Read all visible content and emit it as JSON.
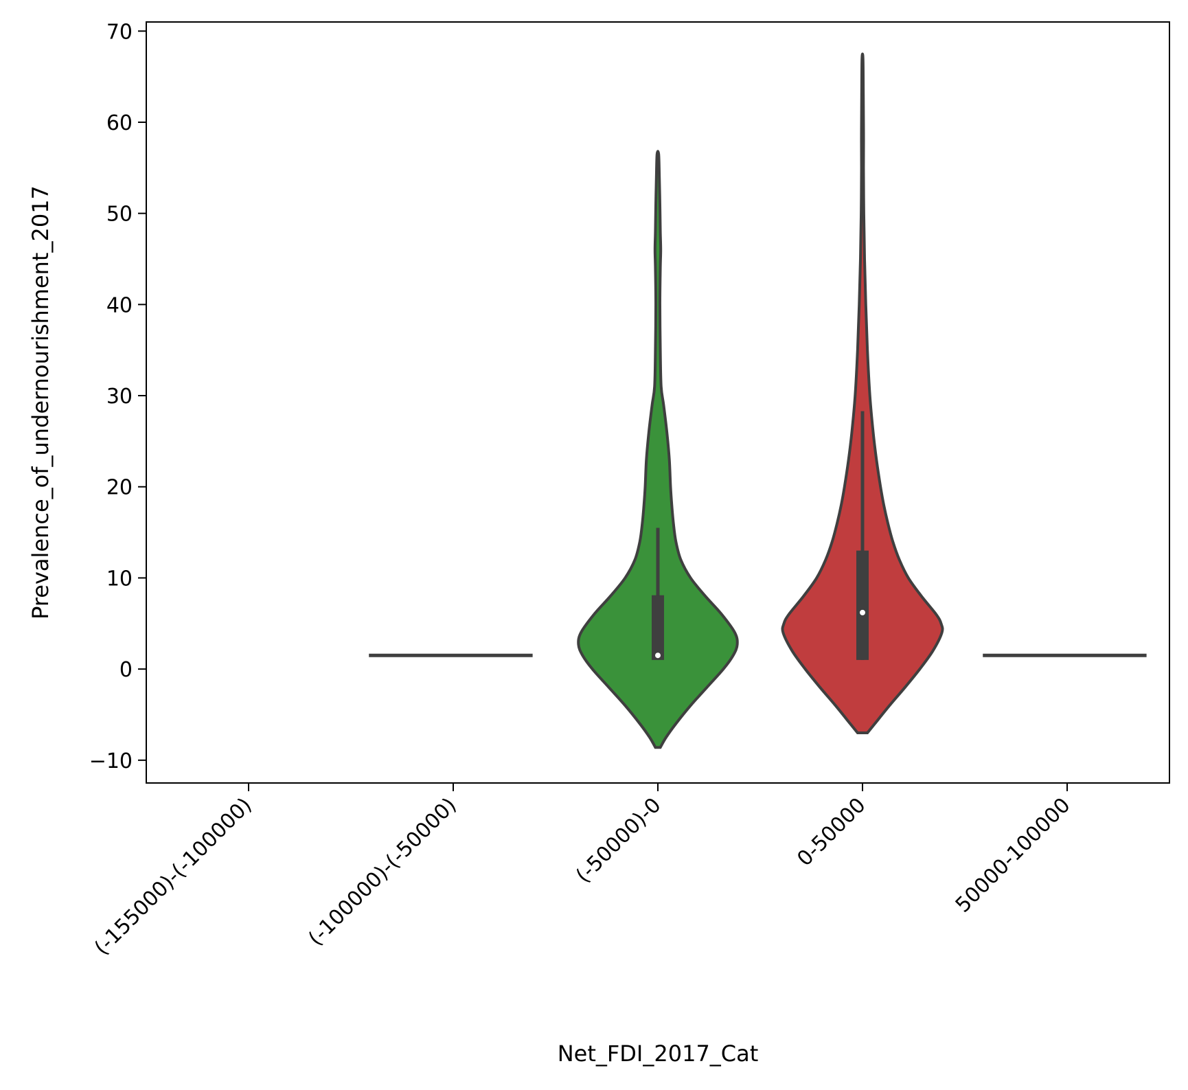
{
  "chart_data": {
    "type": "violin",
    "xlabel": "Net_FDI_2017_Cat",
    "ylabel": "Prevalence_of_undernourishment_2017",
    "ylim": [
      -12.5,
      71
    ],
    "yticks": [
      -10,
      0,
      10,
      20,
      30,
      40,
      50,
      60,
      70
    ],
    "ytick_labels": [
      "−10",
      "0",
      "10",
      "20",
      "30",
      "40",
      "50",
      "60",
      "70"
    ],
    "categories": [
      "(-155000)-(-100000)",
      "(-100000)-(-50000)",
      "(-50000)-0",
      "0-50000",
      "50000-100000"
    ],
    "grid": false,
    "legend": "none",
    "colors": {
      "(-50000)-0": "#3a923a",
      "0-50000": "#c03d3e",
      "outline": "#3f3f3f",
      "axes": "#000000"
    },
    "groups": [
      {
        "category": "(-155000)-(-100000)",
        "kind": "empty"
      },
      {
        "category": "(-100000)-(-50000)",
        "kind": "single_value",
        "value": 1.5
      },
      {
        "category": "(-50000)-0",
        "kind": "violin",
        "min_extent": -8.6,
        "max_extent": 56.5,
        "whisker_low": 1.0,
        "q1": 1.0,
        "median": 1.5,
        "q3": 8.1,
        "whisker_high": 15.5,
        "density": [
          [
            -8.6,
            0.03
          ],
          [
            -7.5,
            0.1
          ],
          [
            -6,
            0.22
          ],
          [
            -4,
            0.4
          ],
          [
            -2,
            0.6
          ],
          [
            0,
            0.8
          ],
          [
            1.5,
            0.92
          ],
          [
            2.7,
            0.97
          ],
          [
            4,
            0.94
          ],
          [
            6,
            0.78
          ],
          [
            8,
            0.58
          ],
          [
            10,
            0.4
          ],
          [
            12,
            0.28
          ],
          [
            14,
            0.22
          ],
          [
            16,
            0.19
          ],
          [
            18,
            0.17
          ],
          [
            20,
            0.155
          ],
          [
            23,
            0.14
          ],
          [
            26,
            0.11
          ],
          [
            29,
            0.07
          ],
          [
            31,
            0.04
          ],
          [
            35,
            0.03
          ],
          [
            40,
            0.025
          ],
          [
            44,
            0.03
          ],
          [
            46,
            0.035
          ],
          [
            48,
            0.03
          ],
          [
            51,
            0.025
          ],
          [
            54,
            0.018
          ],
          [
            56.5,
            0.01
          ]
        ]
      },
      {
        "category": "0-50000",
        "kind": "violin",
        "min_extent": -7.0,
        "max_extent": 67.0,
        "whisker_low": 1.0,
        "q1": 1.0,
        "median": 6.2,
        "q3": 13.0,
        "whisker_high": 28.3,
        "density": [
          [
            -7.0,
            0.06
          ],
          [
            -6,
            0.15
          ],
          [
            -4,
            0.33
          ],
          [
            -2,
            0.52
          ],
          [
            0,
            0.7
          ],
          [
            2,
            0.86
          ],
          [
            4,
            0.97
          ],
          [
            5,
            0.96
          ],
          [
            6,
            0.9
          ],
          [
            8,
            0.72
          ],
          [
            10,
            0.56
          ],
          [
            12,
            0.45
          ],
          [
            14,
            0.37
          ],
          [
            16,
            0.31
          ],
          [
            18,
            0.26
          ],
          [
            20,
            0.22
          ],
          [
            23,
            0.17
          ],
          [
            26,
            0.13
          ],
          [
            30,
            0.09
          ],
          [
            35,
            0.06
          ],
          [
            40,
            0.04
          ],
          [
            45,
            0.025
          ],
          [
            50,
            0.016
          ],
          [
            55,
            0.012
          ],
          [
            58,
            0.013
          ],
          [
            60,
            0.012
          ],
          [
            63,
            0.01
          ],
          [
            67,
            0.006
          ]
        ]
      },
      {
        "category": "50000-100000",
        "kind": "single_value",
        "value": 1.5
      }
    ]
  }
}
